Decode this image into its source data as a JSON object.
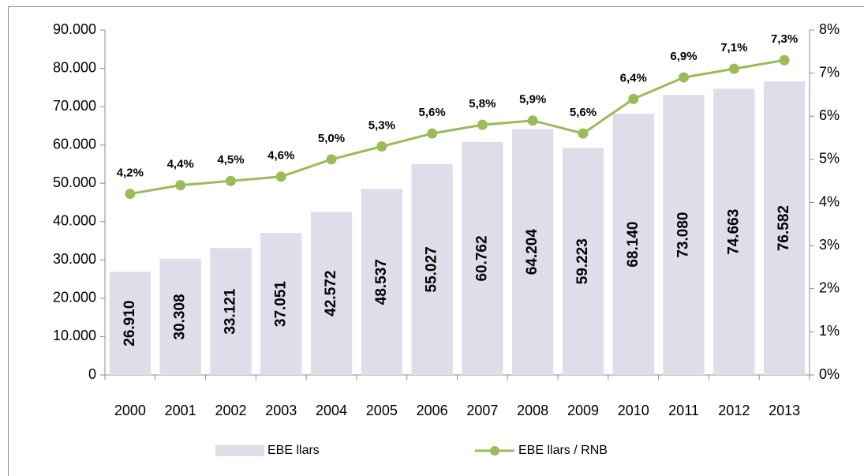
{
  "chart_data": {
    "type": "bar",
    "categories": [
      "2000",
      "2001",
      "2002",
      "2003",
      "2004",
      "2005",
      "2006",
      "2007",
      "2008",
      "2009",
      "2010",
      "2011",
      "2012",
      "2013"
    ],
    "series": [
      {
        "name": "EBE llars",
        "type": "bar",
        "color": "#e0dcea",
        "values": [
          26910,
          30308,
          33121,
          37051,
          42572,
          48537,
          55027,
          60762,
          64204,
          59223,
          68140,
          73080,
          74663,
          76582
        ],
        "value_labels": [
          "26.910",
          "30.308",
          "33.121",
          "37.051",
          "42.572",
          "48.537",
          "55.027",
          "60.762",
          "64.204",
          "59.223",
          "68.140",
          "73.080",
          "74.663",
          "76.582"
        ]
      },
      {
        "name": "EBE llars / RNB",
        "type": "line",
        "axis": "y2",
        "color": "#9bbb59",
        "values": [
          4.2,
          4.4,
          4.5,
          4.6,
          5.0,
          5.3,
          5.6,
          5.8,
          5.9,
          5.6,
          6.4,
          6.9,
          7.1,
          7.3
        ],
        "value_labels": [
          "4,2%",
          "4,4%",
          "4,5%",
          "4,6%",
          "5,0%",
          "5,3%",
          "5,6%",
          "5,8%",
          "5,9%",
          "5,6%",
          "6,4%",
          "6,9%",
          "7,1%",
          "7,3%"
        ]
      }
    ],
    "ylim": [
      0,
      90000
    ],
    "yticks": [
      0,
      {
        "value": 10000,
        "label": "10.000"
      },
      {
        "value": 20000,
        "label": "20.000"
      },
      {
        "value": 30000,
        "label": "30.000"
      },
      {
        "value": 40000,
        "label": "40.000"
      },
      {
        "value": 50000,
        "label": "50.000"
      },
      {
        "value": 60000,
        "label": "60.000"
      },
      {
        "value": 70000,
        "label": "70.000"
      },
      {
        "value": 80000,
        "label": "80.000"
      },
      {
        "value": 90000,
        "label": "90.000"
      }
    ],
    "y2lim": [
      0,
      8
    ],
    "y2ticks": [
      {
        "value": 0,
        "label": "0%"
      },
      {
        "value": 1,
        "label": "1%"
      },
      {
        "value": 2,
        "label": "2%"
      },
      {
        "value": 3,
        "label": "3%"
      },
      {
        "value": 4,
        "label": "4%"
      },
      {
        "value": 5,
        "label": "5%"
      },
      {
        "value": 6,
        "label": "6%"
      },
      {
        "value": 7,
        "label": "7%"
      },
      {
        "value": 8,
        "label": "8%"
      }
    ],
    "legend": "bottom"
  }
}
